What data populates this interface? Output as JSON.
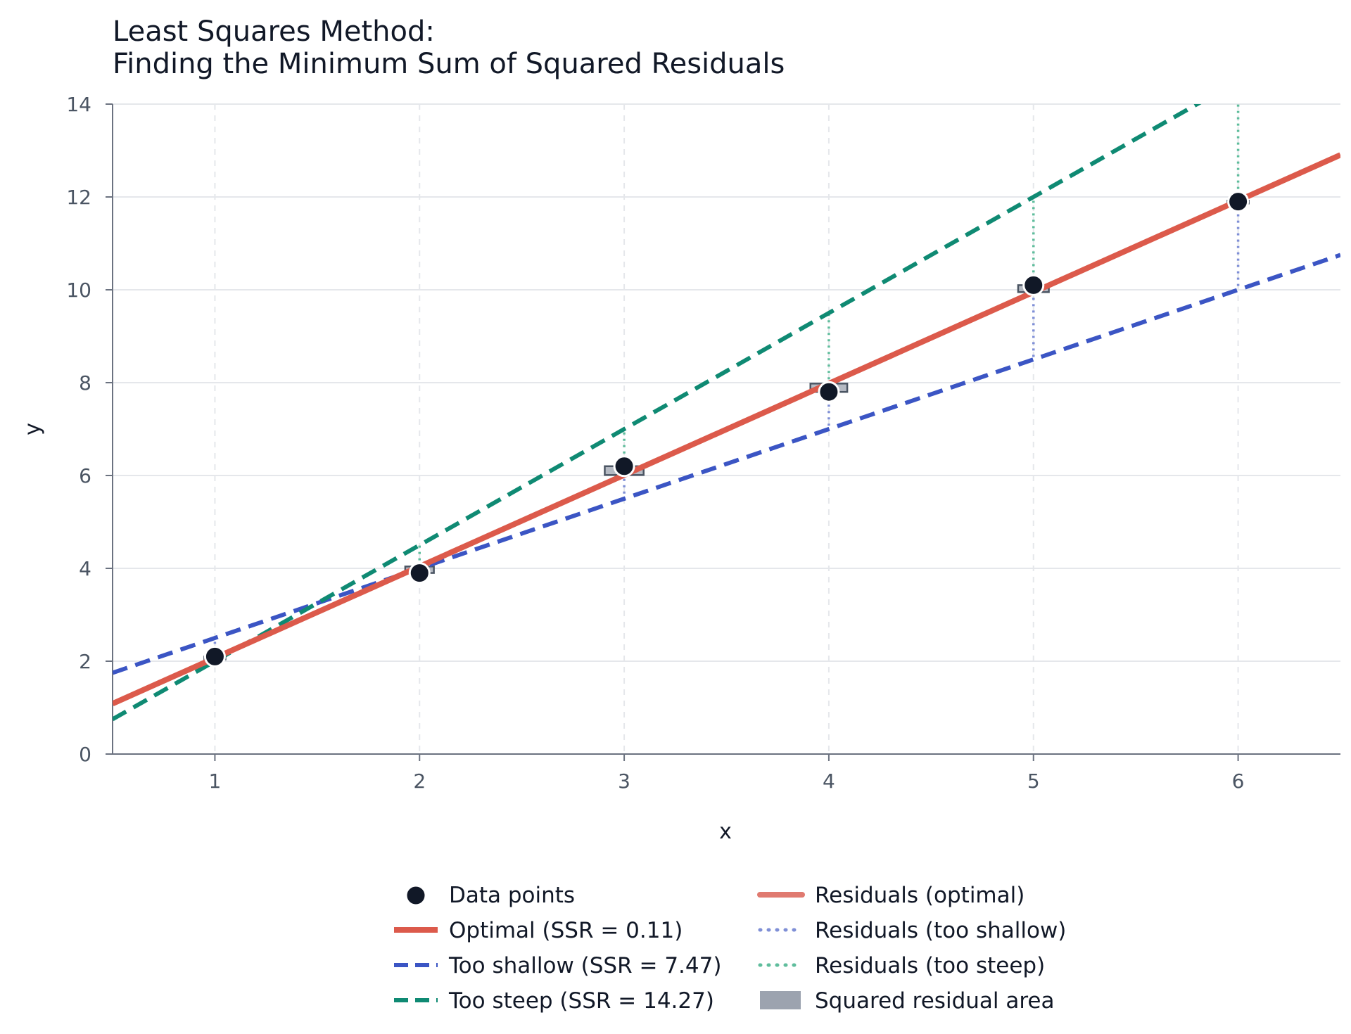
{
  "chart_data": {
    "type": "scatter",
    "title_line1": "Least Squares Method:",
    "title_line2": "Finding the Minimum Sum of Squared Residuals",
    "xlabel": "x",
    "ylabel": "y",
    "xlim": [
      0.5,
      6.5
    ],
    "ylim": [
      0,
      14
    ],
    "xticks": [
      1,
      2,
      3,
      4,
      5,
      6
    ],
    "yticks": [
      0,
      2,
      4,
      6,
      8,
      10,
      12,
      14
    ],
    "grid": true,
    "legend_position": "bottom-center",
    "points": {
      "name": "Data points",
      "x": [
        1,
        2,
        3,
        4,
        5,
        6
      ],
      "y": [
        2.1,
        3.9,
        6.2,
        7.8,
        10.1,
        11.9
      ]
    },
    "lines": [
      {
        "name": "Optimal (SSR = 0.11)",
        "slope": 1.97,
        "intercept": 0.1,
        "style": "solid",
        "color": "#dc5a4b"
      },
      {
        "name": "Too shallow (SSR = 7.47)",
        "slope": 1.5,
        "intercept": 1.0,
        "style": "dashed",
        "color": "#3b55c4"
      },
      {
        "name": "Too steep (SSR = 14.27)",
        "slope": 2.5,
        "intercept": -0.5,
        "style": "dashed",
        "color": "#0f8a73"
      }
    ],
    "residual_legend": [
      {
        "name": "Residuals (optimal)",
        "color": "#e07a70",
        "style": "solid"
      },
      {
        "name": "Residuals (too shallow)",
        "color": "#7f8fd6",
        "style": "dotted"
      },
      {
        "name": "Residuals (too steep)",
        "color": "#5fbd9c",
        "style": "dotted"
      },
      {
        "name": "Squared residual area",
        "color": "#9ca3af",
        "style": "patch"
      }
    ],
    "colors": {
      "point": "#111827",
      "axis": "#6b7280",
      "grid": "#e5e7eb",
      "square_fill": "#9ca3af",
      "square_stroke": "#4b5563"
    }
  }
}
